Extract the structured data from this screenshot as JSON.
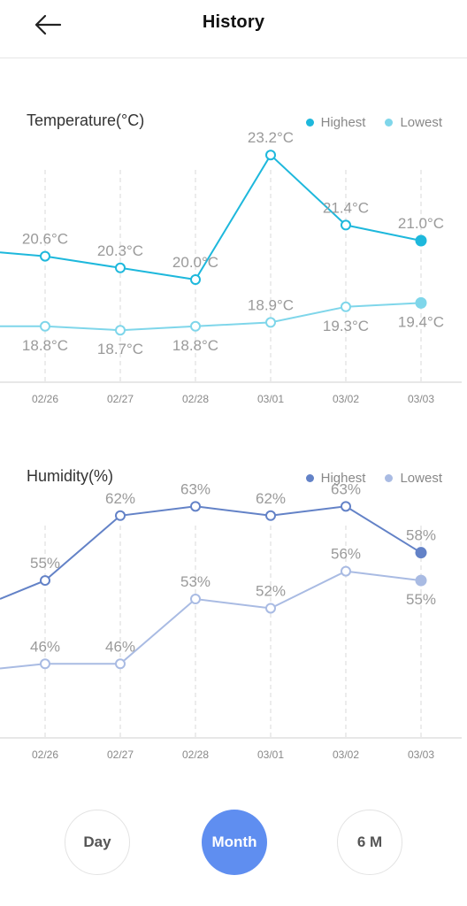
{
  "header": {
    "title": "History"
  },
  "colors": {
    "temp_highest": "#1eb8dc",
    "temp_lowest": "#7fd6ea",
    "hum_highest": "#6382c7",
    "hum_lowest": "#a9bbe3",
    "active_tab": "#5f8ef0"
  },
  "temperature": {
    "title": "Temperature(°C)",
    "legend": {
      "highest": "Highest",
      "lowest": "Lowest"
    }
  },
  "humidity": {
    "title": "Humidity(%)",
    "legend": {
      "highest": "Highest",
      "lowest": "Lowest"
    }
  },
  "range_tabs": {
    "day": "Day",
    "month": "Month",
    "six_months": "6 M",
    "selected": "month"
  },
  "chart_data": [
    {
      "type": "line",
      "title": "Temperature(°C)",
      "categories": [
        "02/26",
        "02/27",
        "02/28",
        "03/01",
        "03/02",
        "03/03"
      ],
      "unit_suffix": "°C",
      "y_scale_range": [
        17.5,
        24.5
      ],
      "grid": "vertical-dashed",
      "legend_position": "top-right",
      "series": [
        {
          "name": "Highest",
          "key": "highest",
          "values": [
            20.6,
            20.3,
            20.0,
            23.2,
            21.4,
            21.0
          ],
          "labels": [
            "20.6°C",
            "20.3°C",
            "20.0°C",
            "23.2°C",
            "21.4°C",
            "21.0°C"
          ],
          "label_side": "above",
          "lead_in_value": 20.7
        },
        {
          "name": "Lowest",
          "key": "lowest",
          "values": [
            18.8,
            18.7,
            18.8,
            18.9,
            19.3,
            19.4
          ],
          "labels": [
            "18.8°C",
            "18.7°C",
            "18.8°C",
            "18.9°C",
            "19.3°C",
            "19.4°C"
          ],
          "label_side": "below",
          "lead_in_value": 18.8
        }
      ],
      "label_above_indices": {
        "lowest": [
          3
        ]
      },
      "label_below_indices": {}
    },
    {
      "type": "line",
      "title": "Humidity(%)",
      "categories": [
        "02/26",
        "02/27",
        "02/28",
        "03/01",
        "03/02",
        "03/03"
      ],
      "unit_suffix": "%",
      "y_scale_range": [
        38,
        68
      ],
      "grid": "vertical-dashed",
      "legend_position": "top-right",
      "series": [
        {
          "name": "Highest",
          "key": "highest",
          "values": [
            55,
            62,
            63,
            62,
            63,
            58
          ],
          "labels": [
            "55%",
            "62%",
            "63%",
            "62%",
            "63%",
            "58%"
          ],
          "label_side": "above",
          "lead_in_value": 53
        },
        {
          "name": "Lowest",
          "key": "lowest",
          "values": [
            46,
            46,
            53,
            52,
            56,
            55
          ],
          "labels": [
            "46%",
            "46%",
            "53%",
            "52%",
            "56%",
            "55%"
          ],
          "label_side": "above",
          "lead_in_value": 45.5
        }
      ],
      "label_above_indices": {},
      "label_below_indices": {
        "lowest": [
          5
        ]
      }
    }
  ]
}
